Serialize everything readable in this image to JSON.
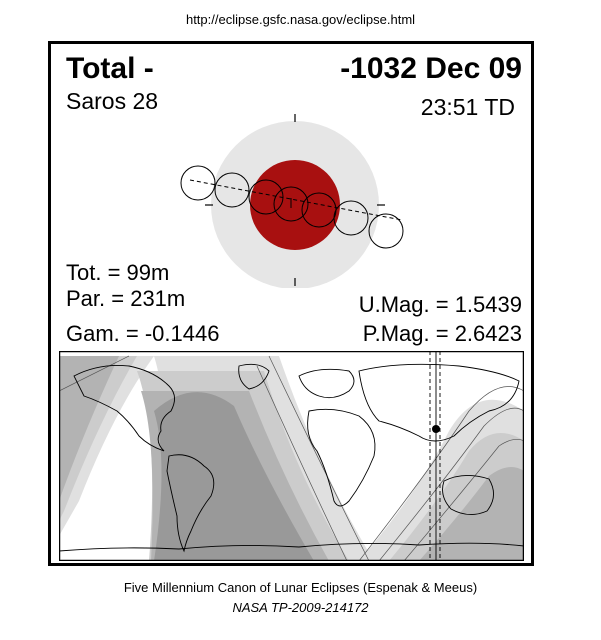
{
  "header": {
    "url": "http://eclipse.gsfc.nasa.gov/eclipse.html"
  },
  "eclipse": {
    "type_label": "Total  -",
    "date": "-1032 Dec 09",
    "saros": "Saros  28",
    "time": "23:51 TD",
    "totality": "Tot. =  99m",
    "partial": "Par. = 231m",
    "gamma": "Gam. = -0.1446",
    "umbral_magnitude": "U.Mag. = 1.5439",
    "penumbral_magnitude": "P.Mag. = 2.6423"
  },
  "colors": {
    "umbra": "#a81010",
    "penumbra": "#e6e6e6",
    "map_dark": "#999999",
    "map_band1": "#b3b3b3",
    "map_band2": "#cccccc",
    "map_band3": "#e0e0e0",
    "map_light": "#ffffff"
  },
  "footer": {
    "caption": "Five Millennium Canon of Lunar Eclipses (Espenak & Meeus)",
    "publication": "NASA TP-2009-214172"
  }
}
